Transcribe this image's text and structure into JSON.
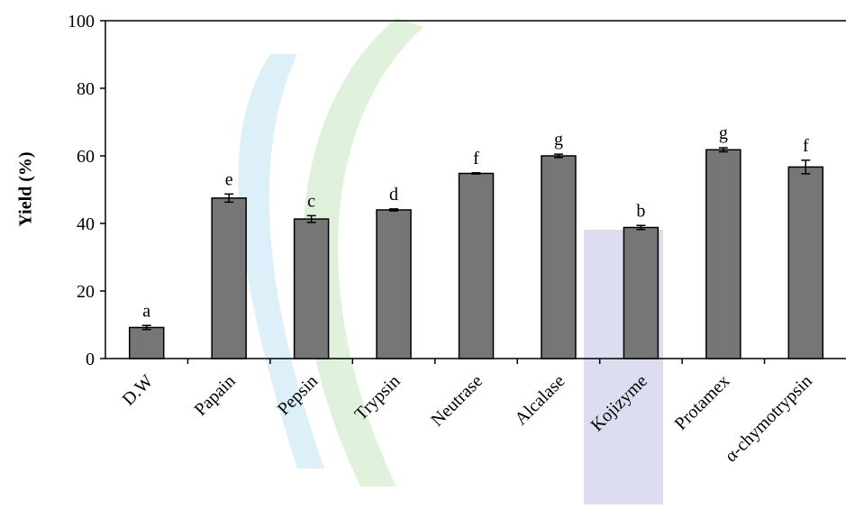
{
  "chart_data": {
    "type": "bar",
    "y_label": "Yield (%)",
    "categories": [
      "D.W",
      "Papain",
      "Pepsin",
      "Trypsin",
      "Neutrase",
      "Alcalase",
      "Kojizyme",
      "Protamex",
      "α-chymotrypsin"
    ],
    "values": [
      9.2,
      47.5,
      41.3,
      44.0,
      54.8,
      60.0,
      38.8,
      61.8,
      56.7
    ],
    "errors": [
      0.6,
      1.2,
      1.0,
      0.3,
      0.2,
      0.5,
      0.6,
      0.6,
      2.0
    ],
    "significance_labels": [
      "a",
      "e",
      "c",
      "d",
      "f",
      "g",
      "b",
      "g",
      "f"
    ],
    "color": "#767676",
    "ylim": [
      0,
      100
    ],
    "yticks": [
      0,
      20,
      40,
      60,
      80,
      100
    ]
  }
}
